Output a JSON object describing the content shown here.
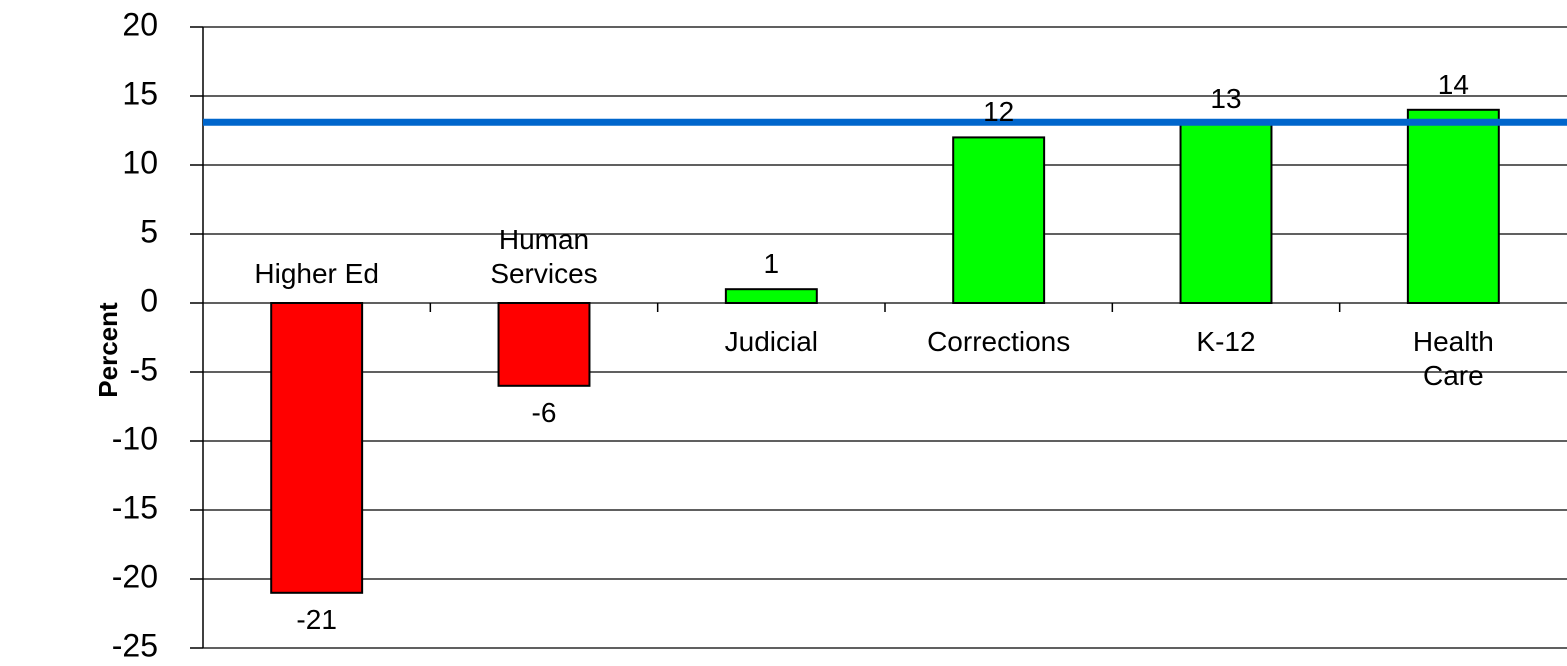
{
  "chart_data": {
    "type": "bar",
    "y_label": "Percent",
    "categories": [
      "Higher Ed",
      "Human\nServices",
      "Judicial",
      "Corrections",
      "K-12",
      "Health Care"
    ],
    "values": [
      -21,
      -6,
      1,
      12,
      13,
      14
    ],
    "colors": [
      "#ff0000",
      "#ff0000",
      "#00ff00",
      "#00ff00",
      "#00ff00",
      "#00ff00"
    ],
    "reference_line": {
      "value": 13.1,
      "color": "#0066cc"
    },
    "ylim": [
      -25,
      20
    ],
    "yticks": [
      -25,
      -20,
      -15,
      -10,
      -5,
      0,
      5,
      10,
      15,
      20
    ],
    "grid": true
  }
}
